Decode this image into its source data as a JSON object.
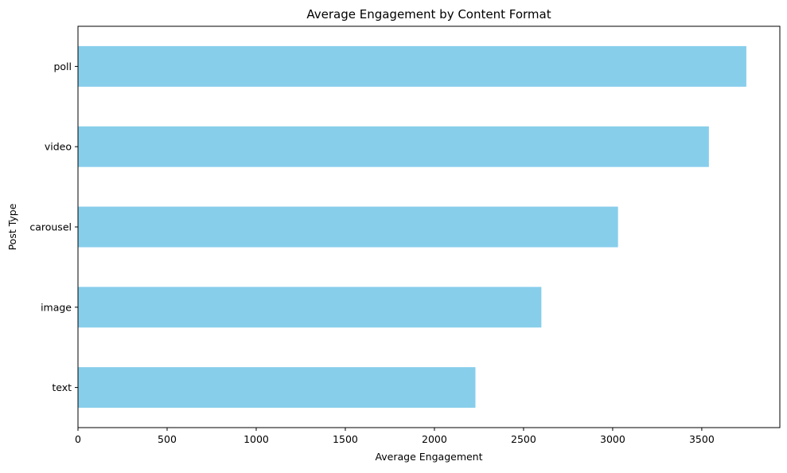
{
  "chart_data": {
    "type": "bar",
    "orientation": "horizontal",
    "title": "Average Engagement by Content Format",
    "xlabel": "Average Engagement",
    "ylabel": "Post Type",
    "categories": [
      "text",
      "image",
      "carousel",
      "video",
      "poll"
    ],
    "values": [
      2230,
      2600,
      3030,
      3540,
      3750
    ],
    "xlim": [
      0,
      3938
    ],
    "xticks": [
      0,
      500,
      1000,
      1500,
      2000,
      2500,
      3000,
      3500
    ],
    "grid": false,
    "legend": false,
    "bar_color": "#87CEEB"
  }
}
